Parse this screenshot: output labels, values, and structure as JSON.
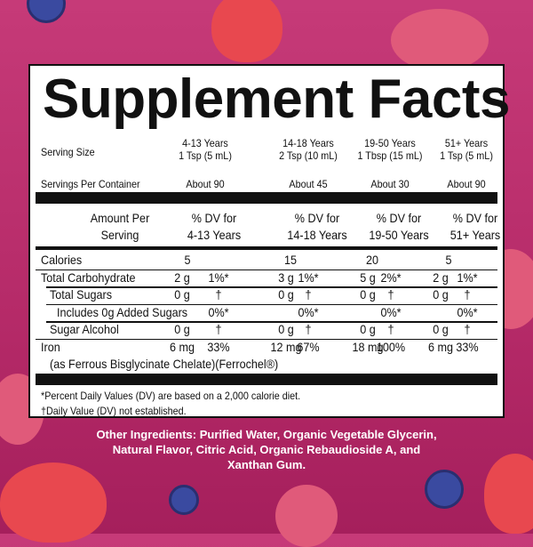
{
  "title": "Supplement Facts",
  "serving_size_label": "Serving Size",
  "servings_per_container_label": "Servings Per Container",
  "groups": [
    {
      "age": "4-13 Years",
      "size": "1 Tsp (5 mL)",
      "servings": "About 90",
      "dv_line1": "% DV for",
      "dv_line2": "4-13 Years"
    },
    {
      "age": "14-18 Years",
      "size": "2 Tsp (10 mL)",
      "servings": "About 45",
      "dv_line1": "% DV for",
      "dv_line2": "14-18 Years"
    },
    {
      "age": "19-50 Years",
      "size": "1 Tbsp (15 mL)",
      "servings": "About 30",
      "dv_line1": "% DV for",
      "dv_line2": "19-50 Years"
    },
    {
      "age": "51+ Years",
      "size": "1 Tsp (5 mL)",
      "servings": "About 90",
      "dv_line1": "% DV for",
      "dv_line2": "51+ Years"
    }
  ],
  "amount_header_line1": "Amount Per",
  "amount_header_line2": "Serving",
  "rows": [
    {
      "label": "Calories",
      "values": [
        [
          "5",
          ""
        ],
        [
          "15",
          ""
        ],
        [
          "20",
          ""
        ],
        [
          "5",
          ""
        ]
      ]
    },
    {
      "label": "Total Carbohydrate",
      "values": [
        [
          "2 g",
          "1%*"
        ],
        [
          "3 g",
          "1%*"
        ],
        [
          "5 g",
          "2%*"
        ],
        [
          "2 g",
          "1%*"
        ]
      ]
    },
    {
      "label": "Total Sugars",
      "values": [
        [
          "0 g",
          "†"
        ],
        [
          "0 g",
          "†"
        ],
        [
          "0 g",
          "†"
        ],
        [
          "0 g",
          "†"
        ]
      ]
    },
    {
      "label": "Includes 0g Added Sugars",
      "values": [
        [
          "",
          "0%*"
        ],
        [
          "",
          "0%*"
        ],
        [
          "",
          "0%*"
        ],
        [
          "",
          "0%*"
        ]
      ]
    },
    {
      "label": "Sugar Alcohol",
      "values": [
        [
          "0 g",
          "†"
        ],
        [
          "0 g",
          "†"
        ],
        [
          "0 g",
          "†"
        ],
        [
          "0 g",
          "†"
        ]
      ]
    },
    {
      "label": "Iron",
      "values": [
        [
          "6 mg",
          "33%"
        ],
        [
          "12 mg",
          "67%"
        ],
        [
          "18 mg",
          "100%"
        ],
        [
          "6 mg",
          "33%"
        ]
      ]
    }
  ],
  "iron_source": "(as Ferrous Bisglycinate Chelate)(Ferrochel®)",
  "footnote_1": "*Percent Daily Values (DV) are based on a 2,000 calorie diet.",
  "footnote_2": "†Daily Value (DV) not established.",
  "other_ingredients": [
    "Other Ingredients: Purified Water, Organic Vegetable Glycerin,",
    "Natural Flavor, Citric Acid, Organic Rebaudioside A, and",
    "Xanthan Gum."
  ],
  "colors": {
    "background": "#b52a68",
    "panel": "#ffffff",
    "text": "#111111",
    "ingredients_text": "#ffffff"
  }
}
